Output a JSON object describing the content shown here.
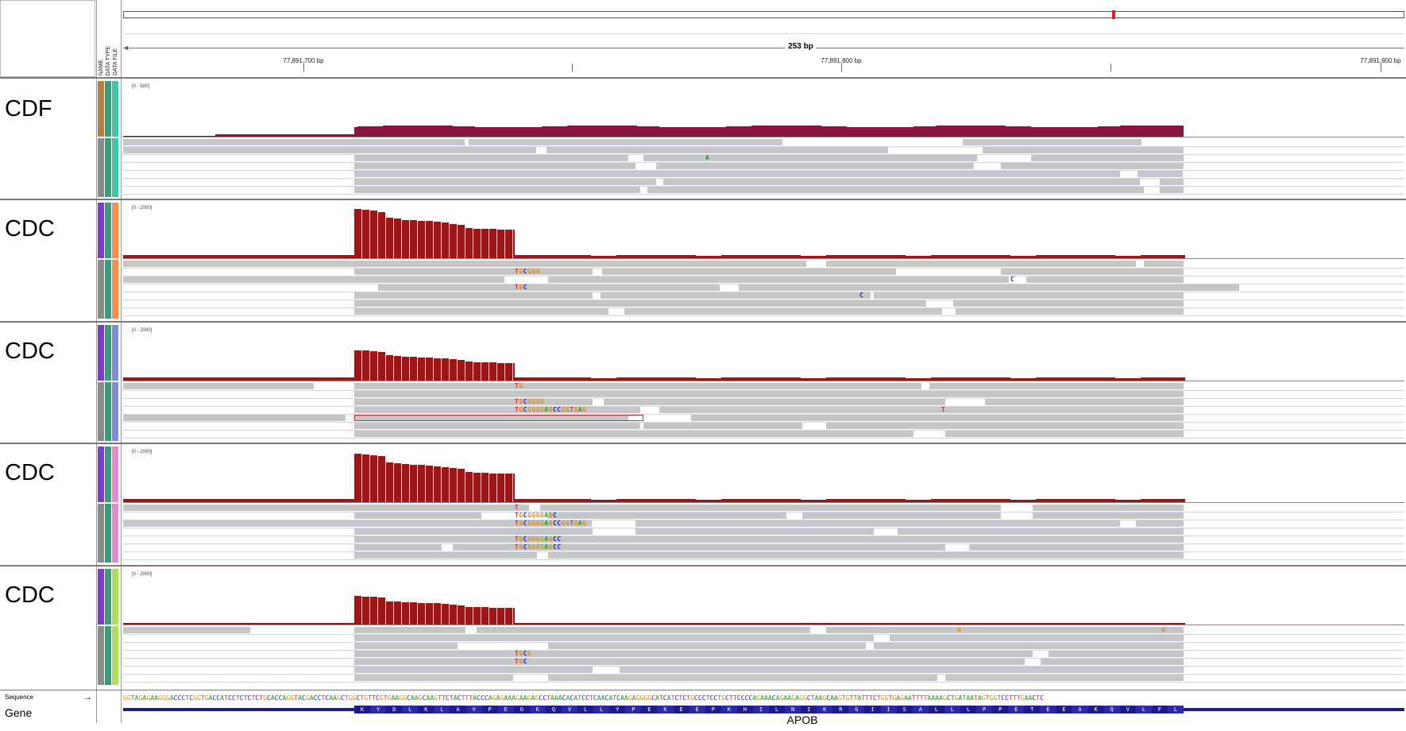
{
  "header": {
    "attribute_columns": [
      "NAME",
      "DATA TYPE",
      "DATA FILE"
    ],
    "span_label": "253 bp",
    "ticks": [
      "77,891,700 bp",
      "77,891,800 bp",
      "77,891,900 bp"
    ]
  },
  "tracks": [
    {
      "name": "CDF",
      "range": "[0 - 500]",
      "attr_colors": [
        "#b87f40",
        "#3c9b7a",
        "#3cc8a8"
      ]
    },
    {
      "name": "CDC",
      "range": "[0 - 2000]",
      "attr_colors": [
        "#7a3bd0",
        "#3c9b7a",
        "#ff8a4a"
      ]
    },
    {
      "name": "CDC",
      "range": "[0 - 2000]",
      "attr_colors": [
        "#7a3bd0",
        "#3c9b7a",
        "#7a8fd8"
      ]
    },
    {
      "name": "CDC",
      "range": "[0 - 2000]",
      "attr_colors": [
        "#7a3bd0",
        "#3c9b7a",
        "#e08ad0"
      ]
    },
    {
      "name": "CDC",
      "range": "[0 - 2000]",
      "attr_colors": [
        "#7a3bd0",
        "#3c9b7a",
        "#a8e05a"
      ]
    }
  ],
  "mismatches": {
    "t2_a": "TGCGGG",
    "t2_b": "TGC",
    "t2_c": "C",
    "t2_d": "C",
    "t3_a": "TG",
    "t3_b": "TGCGGGG",
    "t3_c": "TGCGGGGAGCCGGTGAG",
    "t3_d": "T",
    "t4_a": "T",
    "t4_b": "TGCGGGGAGC",
    "t4_c": "TGCGGGGAGCCGGTGAG",
    "t4_d": "TGCGGGGAGCC",
    "t4_e": "TGCGGGGAGCC",
    "t5_a": "TGCG",
    "t5_b": "TGC",
    "t5_c": "G",
    "t5_d": "G",
    "t1_a": "A"
  },
  "bottom": {
    "sequence_label": "Sequence",
    "sequence_arrow": "→",
    "gene_label": "Gene",
    "gene_name": "APOB",
    "sequence": "GGTAGAGAAGGGACCCTCGGTGACCATCCTCTCTCTGCACCAGGTACGACCTCAAGCTGGCTGTTCGTGAAGGCAAGCAAGTTCTACTTTACCCAGAGAAAGAAGAGCCTAAACACATCCTCAACATCAAGAGGGGCATCATCTCTGCCCTCCTGCTTCCCCAGAAACAGAAGAGGCTAAGCAAGTGTTATTTCTGGTGAGAATTTTAAAAGCTGATAATAGTGGTCCTTTGAACTC",
    "amino_acids": [
      "K",
      "Y",
      "D",
      "L",
      "K",
      "L",
      "A",
      "V",
      "P",
      "E",
      "G",
      "K",
      "Q",
      "V",
      "L",
      "L",
      "Y",
      "P",
      "E",
      "K",
      "E",
      "E",
      "P",
      "K",
      "H",
      "I",
      "L",
      "N",
      "I",
      "K",
      "R",
      "G",
      "I",
      "I",
      "S",
      "A",
      "L",
      "L",
      "L",
      "P",
      "P",
      "E",
      "T",
      "E",
      "E",
      "A",
      "K",
      "Q",
      "V",
      "L",
      "F",
      "L"
    ]
  },
  "colors": {
    "coverage_cdf": "#8e1240",
    "coverage_cdc": "#9b1616",
    "read": "#c6c6c6",
    "gene": "#1c1c8e",
    "A": "#1a9e1a",
    "C": "#2020d0",
    "G": "#d98c1a",
    "T": "#e03030"
  }
}
